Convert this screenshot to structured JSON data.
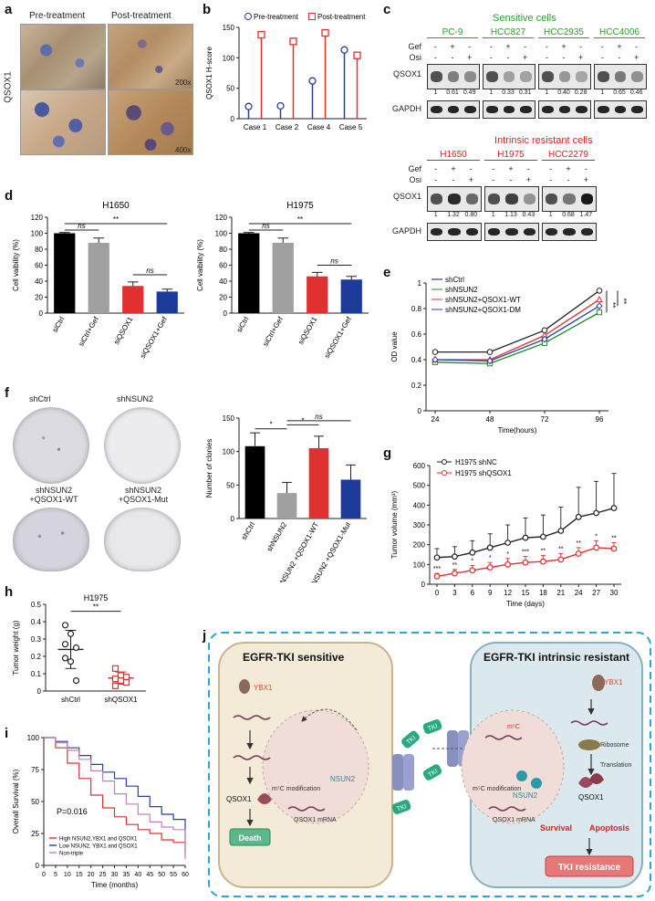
{
  "letters": {
    "a": "a",
    "b": "b",
    "c": "c",
    "d": "d",
    "e": "e",
    "f": "f",
    "g": "g",
    "h": "h",
    "i": "i",
    "j": "j"
  },
  "panel_a": {
    "pre": "Pre-treatment",
    "post": "Post-treatment",
    "ylabel": "QSOX1",
    "mag_low": "200x",
    "mag_high": "400x"
  },
  "chart_data": [
    {
      "id": "b",
      "type": "scatter",
      "categories": [
        "Case 1",
        "Case 2",
        "Case 4",
        "Case 5"
      ],
      "series": [
        {
          "name": "Pre-treatment",
          "values": [
            20,
            21,
            62,
            113
          ],
          "color": "#2a3fa0"
        },
        {
          "name": "Post-treatment",
          "values": [
            138,
            127,
            141,
            104
          ],
          "color": "#e0302f"
        }
      ],
      "ylabel": "QSOX1 H-score",
      "ylim": [
        0,
        150
      ],
      "yticks": [
        0,
        50,
        100,
        150
      ]
    },
    {
      "id": "d1",
      "type": "bar",
      "title": "H1650",
      "categories": [
        "siCtrl",
        "siCtrl+Gef",
        "siQSOX1",
        "siQSOX1+Gef"
      ],
      "values": [
        100,
        88,
        34,
        27
      ],
      "errors": [
        1,
        6,
        5,
        3
      ],
      "colors": [
        "#000000",
        "#a0a0a0",
        "#e0302f",
        "#1c3a9a"
      ],
      "ylabel": "Cell vaibility (%)",
      "ylim": [
        0,
        120
      ],
      "yticks": [
        0,
        20,
        40,
        60,
        80,
        100,
        120
      ],
      "sig": [
        "ns",
        "**",
        "ns"
      ]
    },
    {
      "id": "d2",
      "type": "bar",
      "title": "H1975",
      "categories": [
        "siCtrl",
        "siCtrl+Gef",
        "siQSOX1",
        "siQSOX1+Gef"
      ],
      "values": [
        100,
        88,
        46,
        42
      ],
      "errors": [
        1,
        6,
        5,
        4
      ],
      "colors": [
        "#000000",
        "#a0a0a0",
        "#e0302f",
        "#1c3a9a"
      ],
      "ylabel": "Cell vaibility (%)",
      "ylim": [
        0,
        120
      ],
      "yticks": [
        0,
        20,
        40,
        60,
        80,
        100,
        120
      ],
      "sig": [
        "ns",
        "**",
        "ns"
      ]
    },
    {
      "id": "e",
      "type": "line",
      "x": [
        24,
        48,
        72,
        96
      ],
      "series": [
        {
          "name": "shCtrl",
          "values": [
            0.46,
            0.46,
            0.63,
            0.94
          ],
          "color": "#222222",
          "marker": "circle"
        },
        {
          "name": "shNSUN2",
          "values": [
            0.38,
            0.37,
            0.53,
            0.77
          ],
          "color": "#1a8a2a",
          "marker": "square"
        },
        {
          "name": "shNSUN2+QSOX1-WT",
          "values": [
            0.4,
            0.4,
            0.59,
            0.87
          ],
          "color": "#e0302f",
          "marker": "triangle"
        },
        {
          "name": "shNSUN2+QSOX1-DM",
          "values": [
            0.4,
            0.39,
            0.56,
            0.82
          ],
          "color": "#2a3fa0",
          "marker": "diamond"
        }
      ],
      "xlabel": "Time(hours)",
      "ylabel": "OD value",
      "ylim": [
        0.0,
        1.0
      ],
      "yticks": [
        0.0,
        0.2,
        0.4,
        0.6,
        0.8,
        1.0
      ],
      "sig": [
        "**",
        "**"
      ]
    },
    {
      "id": "f",
      "type": "bar",
      "categories": [
        "shCtrl",
        "shNSUN2",
        "shNSUN2 +QSOX1-WT",
        "shNSUN2 +QSOX1-Mut"
      ],
      "values": [
        108,
        38,
        105,
        58
      ],
      "errors": [
        20,
        16,
        18,
        22
      ],
      "colors": [
        "#000000",
        "#a0a0a0",
        "#e0302f",
        "#1c3a9a"
      ],
      "ylabel": "Number of clonies",
      "ylim": [
        0,
        150
      ],
      "yticks": [
        0,
        50,
        100,
        150
      ],
      "sig": [
        "*",
        "*",
        "ns"
      ]
    },
    {
      "id": "g",
      "type": "line",
      "x": [
        0,
        3,
        6,
        9,
        12,
        15,
        18,
        21,
        24,
        27,
        30
      ],
      "series": [
        {
          "name": "H1975 shNC",
          "values": [
            135,
            140,
            160,
            185,
            210,
            235,
            240,
            270,
            340,
            360,
            385
          ],
          "errors": [
            45,
            50,
            60,
            70,
            90,
            100,
            110,
            120,
            150,
            160,
            175
          ],
          "color": "#222222"
        },
        {
          "name": "H1975 shQSOX1",
          "values": [
            40,
            55,
            70,
            85,
            100,
            110,
            115,
            125,
            155,
            185,
            180
          ],
          "errors": [
            15,
            20,
            25,
            25,
            30,
            30,
            30,
            30,
            30,
            35,
            30
          ],
          "color": "#e0302f"
        }
      ],
      "xlabel": "Time (days)",
      "ylabel": "Tumor volume (mm³)",
      "ylim": [
        0,
        600
      ],
      "yticks": [
        0,
        100,
        200,
        300,
        400,
        500,
        600
      ],
      "sig": [
        "***",
        "**",
        "*",
        "*",
        "*",
        "***",
        "**",
        "**",
        "**",
        "*",
        "**"
      ]
    },
    {
      "id": "h",
      "type": "scatter",
      "title": "H1975",
      "categories": [
        "shCtrl",
        "shQSOX1"
      ],
      "points": [
        [
          0.38,
          0.33,
          0.25,
          0.19,
          0.17,
          0.06,
          0.27
        ],
        [
          0.13,
          0.09,
          0.08,
          0.07,
          0.06,
          0.05,
          0.03
        ]
      ],
      "means": [
        0.24,
        0.075
      ],
      "sd": [
        0.11,
        0.035
      ],
      "colors": [
        "#222222",
        "#e0302f"
      ],
      "ylabel": "Tumor weight (g)",
      "ylim": [
        0.0,
        0.5
      ],
      "yticks": [
        0.0,
        0.1,
        0.2,
        0.3,
        0.4,
        0.5
      ],
      "sig": "**"
    },
    {
      "id": "i",
      "type": "line",
      "x": [
        0,
        5,
        10,
        15,
        20,
        25,
        30,
        35,
        40,
        45,
        50,
        55,
        60
      ],
      "series": [
        {
          "name": "High NSUN2,YBX1 and QSOX1",
          "values": [
            100,
            92,
            80,
            68,
            55,
            45,
            38,
            32,
            28,
            25,
            20,
            18,
            18
          ],
          "color": "#e0302f"
        },
        {
          "name": "Low NSUN2, YBX1 and QSOX1",
          "values": [
            100,
            97,
            92,
            86,
            79,
            73,
            68,
            62,
            54,
            46,
            40,
            36,
            10
          ],
          "color": "#2a3fa0"
        },
        {
          "name": "Non-triple",
          "values": [
            100,
            96,
            90,
            83,
            74,
            66,
            56,
            48,
            40,
            34,
            30,
            28,
            5
          ],
          "color": "#c080c0"
        }
      ],
      "xlabel": "Time (months)",
      "ylabel": "Overall Survival (%)",
      "ylim": [
        0,
        100
      ],
      "yticks": [
        0,
        25,
        50,
        75,
        100
      ],
      "annotation": "P=0.016"
    }
  ],
  "panel_c": {
    "sensitive_title": "Sensitive cells",
    "resistant_title": "Intrinsic resistant cells",
    "row_gef": "Gef",
    "row_osi": "Osi",
    "row_qsox1": "QSOX1",
    "row_gapdh": "GAPDH",
    "sensitive_lines": [
      {
        "name": "PC-9",
        "vals": [
          "1",
          "0.61",
          "0.49"
        ]
      },
      {
        "name": "HCC827",
        "vals": [
          "1",
          "0.33",
          "0.31"
        ]
      },
      {
        "name": "HCC2935",
        "vals": [
          "1",
          "0.40",
          "0.28"
        ]
      },
      {
        "name": "HCC4006",
        "vals": [
          "1",
          "0.65",
          "0.46"
        ]
      }
    ],
    "resistant_lines": [
      {
        "name": "H1650",
        "vals": [
          "1",
          "1.32",
          "0.80"
        ]
      },
      {
        "name": "H1975",
        "vals": [
          "1",
          "1.13",
          "0.43"
        ]
      },
      {
        "name": "HCC2279",
        "vals": [
          "1",
          "0.68",
          "1.47"
        ]
      }
    ],
    "gef_signs": [
      "-",
      "+",
      "-"
    ],
    "osi_signs": [
      "-",
      "-",
      "+"
    ],
    "green": "#2aa02a",
    "red": "#e02020"
  },
  "panel_f": {
    "dish_labels": [
      "shCtrl",
      "shNSUN2",
      "shNSUN2 +QSOX1-WT",
      "shNSUN2 +QSOX1-Mut"
    ]
  },
  "panel_j": {
    "left_title": "EGFR-TKI sensitive",
    "right_title": "EGFR-TKI intrinsic resistant",
    "tki": "TKI",
    "ybx1": "YBX1",
    "qsox1": "QSOX1",
    "death": "Death",
    "m5c_mod": "m⁵C modification",
    "nsun2": "NSUN2",
    "qsox1_mrna": "QSOX1 mRNA",
    "ribosome": "Ribosome",
    "translation": "Translation",
    "survival": "Survival",
    "apoptosis": "Apoptosis",
    "tki_resistance": "TKI resistance",
    "m5c_label": "m⁵C"
  }
}
